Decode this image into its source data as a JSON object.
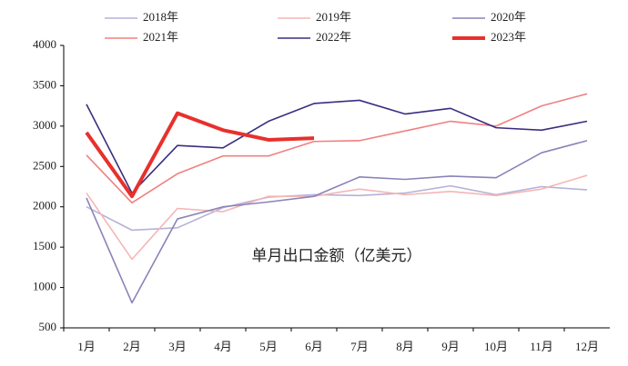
{
  "chart_data": {
    "type": "line",
    "annotation": "单月出口金额（亿美元）",
    "categories": [
      "1月",
      "2月",
      "3月",
      "4月",
      "5月",
      "6月",
      "7月",
      "8月",
      "9月",
      "10月",
      "11月",
      "12月"
    ],
    "series": [
      {
        "name": "2018年",
        "color": "#b4b2d8",
        "values": [
          2000,
          1710,
          1740,
          1990,
          2120,
          2150,
          2140,
          2170,
          2260,
          2150,
          2250,
          2210
        ]
      },
      {
        "name": "2019年",
        "color": "#f5b5b5",
        "values": [
          2170,
          1350,
          1980,
          1940,
          2130,
          2130,
          2220,
          2150,
          2190,
          2140,
          2220,
          2390
        ]
      },
      {
        "name": "2020年",
        "color": "#8a84b8",
        "values": [
          2110,
          810,
          1850,
          2000,
          2060,
          2130,
          2370,
          2340,
          2380,
          2360,
          2670,
          2820
        ]
      },
      {
        "name": "2021年",
        "color": "#f08080",
        "values": [
          2640,
          2050,
          2410,
          2630,
          2630,
          2810,
          2820,
          2940,
          3060,
          3000,
          3250,
          3400
        ]
      },
      {
        "name": "2022年",
        "color": "#3a2e80",
        "values": [
          3270,
          2170,
          2760,
          2730,
          3060,
          3280,
          3320,
          3150,
          3220,
          2980,
          2950,
          3060
        ]
      },
      {
        "name": "2023年",
        "color": "#e8302c",
        "values": [
          2920,
          2130,
          3160,
          2950,
          2830,
          2850,
          null,
          null,
          null,
          null,
          null,
          null
        ]
      }
    ],
    "ylim": [
      500,
      4000
    ],
    "yticks": [
      500,
      1000,
      1500,
      2000,
      2500,
      3000,
      3500,
      4000
    ]
  }
}
